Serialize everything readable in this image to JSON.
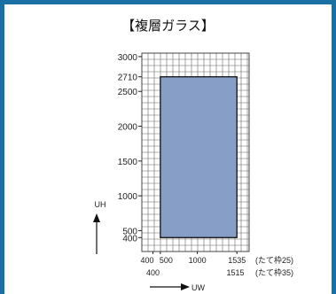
{
  "chart_data": {
    "type": "area",
    "title": "【複層ガラス】",
    "xlabel": "UW",
    "ylabel": "UH",
    "xlim": [
      250,
      1700
    ],
    "ylim": [
      200,
      3050
    ],
    "y_ticks": [
      "3000",
      "2710",
      "2500",
      "2000",
      "1500",
      "1000",
      "500",
      "400"
    ],
    "y_tick_values": [
      3000,
      2710,
      2500,
      2000,
      1500,
      1000,
      500,
      400
    ],
    "x_ticks_row1": [
      "400",
      "500",
      "1000",
      "1535"
    ],
    "x_ticks_row1_values": [
      400,
      500,
      1000,
      1535
    ],
    "x_ticks_row2": [
      "400",
      "1515"
    ],
    "x_ticks_row2_values": [
      400,
      1515
    ],
    "x_notes": [
      "(たて枠25)",
      "(たて枠35)"
    ],
    "region": {
      "x": [
        500,
        1535
      ],
      "y": [
        400,
        2710
      ]
    },
    "grid": true,
    "colors": {
      "fill": "#879fc6",
      "grid": "#666666",
      "frame": "#1a6fa3"
    }
  }
}
